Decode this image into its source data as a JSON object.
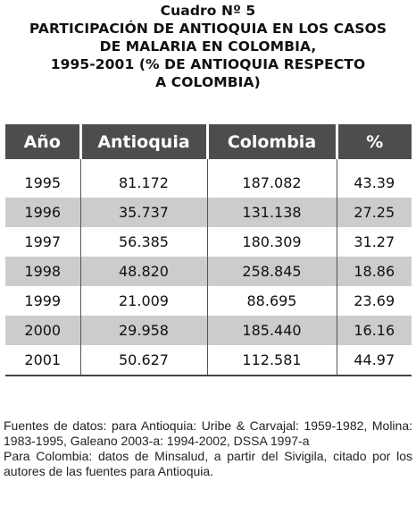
{
  "title": {
    "lines": [
      "Cuadro Nº 5",
      "PARTICIPACIÓN DE ANTIOQUIA EN LOS CASOS",
      "DE MALARIA EN COLOMBIA,",
      "1995-2001 (% DE ANTIOQUIA RESPECTO",
      "A COLOMBIA)"
    ]
  },
  "table": {
    "headers": [
      "Año",
      "Antioquia",
      "Colombia",
      "%"
    ],
    "rows": [
      [
        "1995",
        "81.172",
        "187.082",
        "43.39"
      ],
      [
        "1996",
        "35.737",
        "131.138",
        "27.25"
      ],
      [
        "1997",
        "56.385",
        "180.309",
        "31.27"
      ],
      [
        "1998",
        "48.820",
        "258.845",
        "18.86"
      ],
      [
        "1999",
        "21.009",
        "88.695",
        "23.69"
      ],
      [
        "2000",
        "29.958",
        "185.440",
        "16.16"
      ],
      [
        "2001",
        "50.627",
        "112.581",
        "44.97"
      ]
    ],
    "shaded_color": "#cccccc",
    "header_color": "#4d4d4d"
  },
  "notes": [
    "Fuentes de datos: para Antioquia: Uribe & Carvajal: 1959-1982, Molina: 1983-1995, Galeano 2003-a: 1994-2002, DSSA 1997-a",
    "Para Colombia: datos de Minsalud, a partir del Sivigila, citado por los autores de las fuentes para Antioquia."
  ]
}
